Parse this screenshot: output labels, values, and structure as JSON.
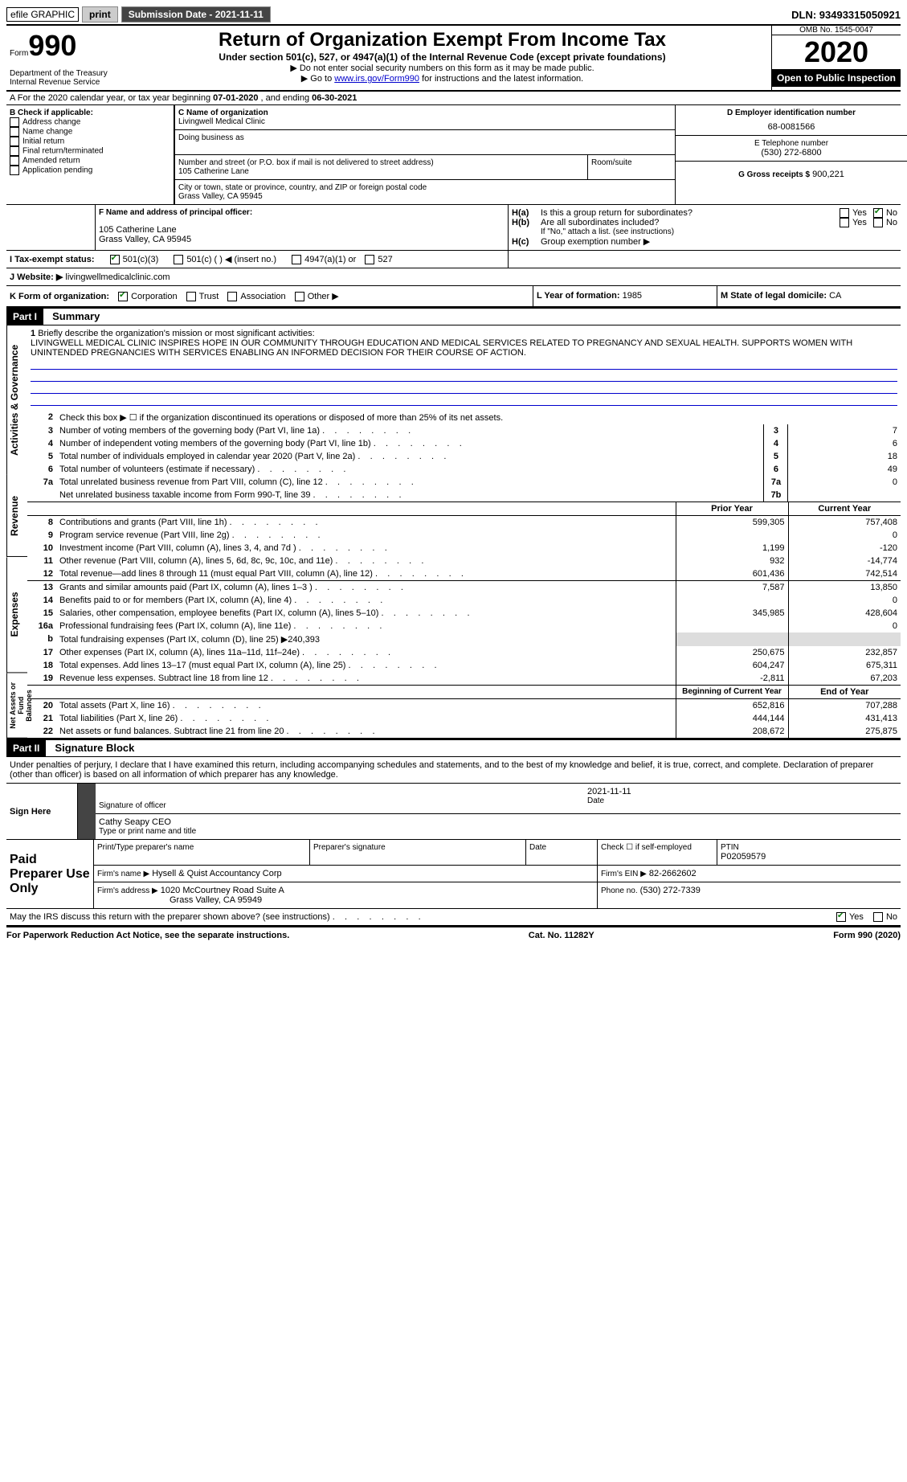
{
  "colors": {
    "link": "#0000cc",
    "check": "#0a7a0a",
    "bg": "#ffffff",
    "text": "#000000",
    "header_bg": "#000000",
    "header_fg": "#ffffff",
    "gray": "#dddddd",
    "mission_line": "#0000cc"
  },
  "topbar": {
    "efile": "efile GRAPHIC",
    "print": "print",
    "sub_label": "Submission Date - 2021-11-11",
    "dln": "DLN: 93493315050921"
  },
  "header": {
    "form_word": "Form",
    "form_num": "990",
    "title": "Return of Organization Exempt From Income Tax",
    "subtitle": "Under section 501(c), 527, or 4947(a)(1) of the Internal Revenue Code (except private foundations)",
    "note1": "▶ Do not enter social security numbers on this form as it may be made public.",
    "note2_pre": "▶ Go to ",
    "note2_link": "www.irs.gov/Form990",
    "note2_post": " for instructions and the latest information.",
    "dept": "Department of the Treasury\nInternal Revenue Service",
    "omb_label": "OMB No. 1545-0047",
    "year": "2020",
    "open_public": "Open to Public Inspection"
  },
  "section_a": {
    "prefix": "A For the 2020 calendar year, or tax year beginning ",
    "begin": "07-01-2020",
    "mid": " , and ending ",
    "end": "06-30-2021"
  },
  "section_b": {
    "label": "B Check if applicable:",
    "items": [
      "Address change",
      "Name change",
      "Initial return",
      "Final return/terminated",
      "Amended return",
      "Application pending"
    ]
  },
  "section_c": {
    "name_label": "C Name of organization",
    "name": "Livingwell Medical Clinic",
    "dba_label": "Doing business as",
    "dba": "",
    "street_label": "Number and street (or P.O. box if mail is not delivered to street address)",
    "room_label": "Room/suite",
    "street": "105 Catherine Lane",
    "city_label": "City or town, state or province, country, and ZIP or foreign postal code",
    "city": "Grass Valley, CA  95945"
  },
  "section_d": {
    "label": "D Employer identification number",
    "value": "68-0081566"
  },
  "section_e": {
    "label": "E Telephone number",
    "value": "(530) 272-6800"
  },
  "section_g": {
    "label": "G Gross receipts $",
    "value": "900,221"
  },
  "section_f": {
    "label": "F Name and address of principal officer:",
    "line1": "105 Catherine Lane",
    "line2": "Grass Valley, CA  95945"
  },
  "section_h": {
    "a_label": "Is this a group return for subordinates?",
    "b_label": "Are all subordinates included?",
    "b_note": "If \"No,\" attach a list. (see instructions)",
    "c_label": "Group exemption number ▶",
    "yes": "Yes",
    "no": "No"
  },
  "section_i": {
    "label": "I     Tax-exempt status:",
    "opt1": "501(c)(3)",
    "opt2": "501(c) (   ) ◀ (insert no.)",
    "opt3": "4947(a)(1) or",
    "opt4": "527"
  },
  "section_j": {
    "label": "J    Website: ▶",
    "value": "livingwellmedicalclinic.com"
  },
  "section_k": {
    "label": "K Form of organization:",
    "opts": [
      "Corporation",
      "Trust",
      "Association",
      "Other ▶"
    ]
  },
  "section_l": {
    "label": "L Year of formation:",
    "value": "1985"
  },
  "section_m": {
    "label": "M State of legal domicile:",
    "value": "CA"
  },
  "part1": {
    "num": "Part I",
    "title": "Summary",
    "side_a": "Activities & Governance",
    "side_rev": "Revenue",
    "side_exp": "Expenses",
    "side_net": "Net Assets or Fund Balances",
    "q1_label": "Briefly describe the organization's mission or most significant activities:",
    "mission": "LIVINGWELL MEDICAL CLINIC INSPIRES HOPE IN OUR COMMUNITY THROUGH EDUCATION AND MEDICAL SERVICES RELATED TO PREGNANCY AND SEXUAL HEALTH. SUPPORTS WOMEN WITH UNINTENDED PREGNANCIES WITH SERVICES ENABLING AN INFORMED DECISION FOR THEIR COURSE OF ACTION.",
    "q2": "Check this box ▶ ☐ if the organization discontinued its operations or disposed of more than 25% of its net assets.",
    "rows_a": [
      {
        "n": "3",
        "t": "Number of voting members of the governing body (Part VI, line 1a)",
        "k": "3",
        "v": "7"
      },
      {
        "n": "4",
        "t": "Number of independent voting members of the governing body (Part VI, line 1b)",
        "k": "4",
        "v": "6"
      },
      {
        "n": "5",
        "t": "Total number of individuals employed in calendar year 2020 (Part V, line 2a)",
        "k": "5",
        "v": "18"
      },
      {
        "n": "6",
        "t": "Total number of volunteers (estimate if necessary)",
        "k": "6",
        "v": "49"
      },
      {
        "n": "7a",
        "t": "Total unrelated business revenue from Part VIII, column (C), line 12",
        "k": "7a",
        "v": "0"
      },
      {
        "n": "",
        "t": "Net unrelated business taxable income from Form 990-T, line 39",
        "k": "7b",
        "v": ""
      }
    ],
    "col_prior": "Prior Year",
    "col_curr": "Current Year",
    "rows_rev": [
      {
        "n": "8",
        "t": "Contributions and grants (Part VIII, line 1h)",
        "p": "599,305",
        "c": "757,408"
      },
      {
        "n": "9",
        "t": "Program service revenue (Part VIII, line 2g)",
        "p": "",
        "c": "0"
      },
      {
        "n": "10",
        "t": "Investment income (Part VIII, column (A), lines 3, 4, and 7d )",
        "p": "1,199",
        "c": "-120"
      },
      {
        "n": "11",
        "t": "Other revenue (Part VIII, column (A), lines 5, 6d, 8c, 9c, 10c, and 11e)",
        "p": "932",
        "c": "-14,774"
      },
      {
        "n": "12",
        "t": "Total revenue—add lines 8 through 11 (must equal Part VIII, column (A), line 12)",
        "p": "601,436",
        "c": "742,514"
      }
    ],
    "rows_exp": [
      {
        "n": "13",
        "t": "Grants and similar amounts paid (Part IX, column (A), lines 1–3 )",
        "p": "7,587",
        "c": "13,850"
      },
      {
        "n": "14",
        "t": "Benefits paid to or for members (Part IX, column (A), line 4)",
        "p": "",
        "c": "0"
      },
      {
        "n": "15",
        "t": "Salaries, other compensation, employee benefits (Part IX, column (A), lines 5–10)",
        "p": "345,985",
        "c": "428,604"
      },
      {
        "n": "16a",
        "t": "Professional fundraising fees (Part IX, column (A), line 11e)",
        "p": "",
        "c": "0"
      },
      {
        "n": "b",
        "t": "Total fundraising expenses (Part IX, column (D), line 25) ▶240,393",
        "p": "",
        "c": "",
        "noval": true
      },
      {
        "n": "17",
        "t": "Other expenses (Part IX, column (A), lines 11a–11d, 11f–24e)",
        "p": "250,675",
        "c": "232,857"
      },
      {
        "n": "18",
        "t": "Total expenses. Add lines 13–17 (must equal Part IX, column (A), line 25)",
        "p": "604,247",
        "c": "675,311"
      },
      {
        "n": "19",
        "t": "Revenue less expenses. Subtract line 18 from line 12",
        "p": "-2,811",
        "c": "67,203"
      }
    ],
    "col_beg": "Beginning of Current Year",
    "col_end": "End of Year",
    "rows_net": [
      {
        "n": "20",
        "t": "Total assets (Part X, line 16)",
        "p": "652,816",
        "c": "707,288"
      },
      {
        "n": "21",
        "t": "Total liabilities (Part X, line 26)",
        "p": "444,144",
        "c": "431,413"
      },
      {
        "n": "22",
        "t": "Net assets or fund balances. Subtract line 21 from line 20",
        "p": "208,672",
        "c": "275,875"
      }
    ]
  },
  "part2": {
    "num": "Part II",
    "title": "Signature Block",
    "decl": "Under penalties of perjury, I declare that I have examined this return, including accompanying schedules and statements, and to the best of my knowledge and belief, it is true, correct, and complete. Declaration of preparer (other than officer) is based on all information of which preparer has any knowledge.",
    "sign_here": "Sign Here",
    "sig_officer": "Signature of officer",
    "sig_date_label": "Date",
    "sig_date": "2021-11-11",
    "officer_name": "Cathy Seapy CEO",
    "type_name": "Type or print name and title",
    "paid": "Paid Preparer Use Only",
    "prep_name_label": "Print/Type preparer's name",
    "prep_sig_label": "Preparer's signature",
    "date_label": "Date",
    "check_self": "Check ☐ if self-employed",
    "ptin_label": "PTIN",
    "ptin": "P02059579",
    "firm_name_label": "Firm's name   ▶",
    "firm_name": "Hysell & Quist Accountancy Corp",
    "firm_ein_label": "Firm's EIN ▶",
    "firm_ein": "82-2662602",
    "firm_addr_label": "Firm's address ▶",
    "firm_addr1": "1020 McCourtney Road Suite A",
    "firm_addr2": "Grass Valley, CA  95949",
    "phone_label": "Phone no.",
    "phone": "(530) 272-7339",
    "discuss": "May the IRS discuss this return with the preparer shown above? (see instructions)",
    "yes": "Yes",
    "no": "No"
  },
  "footer": {
    "left": "For Paperwork Reduction Act Notice, see the separate instructions.",
    "mid": "Cat. No. 11282Y",
    "right_pre": "Form ",
    "right_form": "990",
    "right_post": " (2020)"
  }
}
